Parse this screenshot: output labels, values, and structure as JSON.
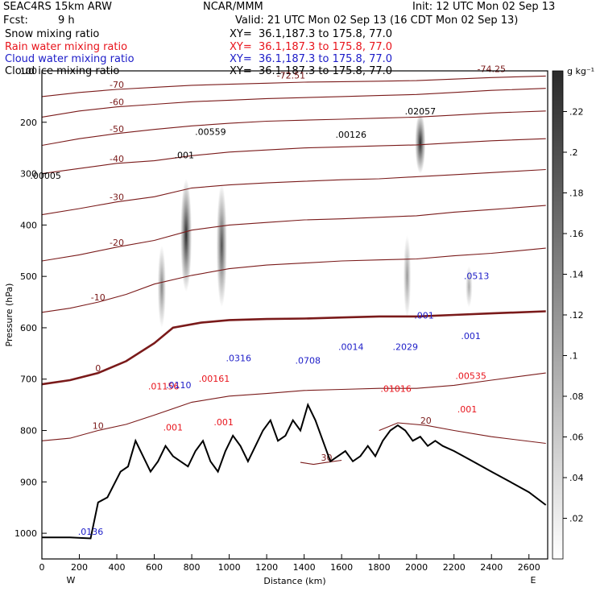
{
  "header": {
    "model": "SEAC4RS 15km ARW",
    "org": "NCAR/MMM",
    "init": "Init: 12 UTC Mon 02 Sep 13",
    "fcst_label": "Fcst:",
    "fcst_value": "9 h",
    "valid": "Valid: 21 UTC Mon 02 Sep 13 (16 CDT Mon 02 Sep 13)"
  },
  "fields": [
    {
      "label": "Snow mixing ratio",
      "xy": "XY=  36.1,187.3 to 175.8, 77.0",
      "color": "#000000"
    },
    {
      "label": "Rain water mixing ratio",
      "xy": "XY=  36.1,187.3 to 175.8, 77.0",
      "color": "#e8141c"
    },
    {
      "label": "Cloud water mixing ratio",
      "xy": "XY=  36.1,187.3 to 175.8, 77.0",
      "color": "#1c1cc8"
    },
    {
      "label": "Cloud ice mixing ratio",
      "xy": "XY=  36.1,187.3 to 175.8, 77.0",
      "color": "#000000"
    }
  ],
  "chart_data": {
    "type": "cross-section",
    "xlabel": "Distance (km)",
    "ylabel": "Pressure (hPa)",
    "xlim": [
      0,
      2700
    ],
    "ylim": [
      1050,
      100
    ],
    "x_ticks": [
      0,
      200,
      400,
      600,
      800,
      1000,
      1200,
      1400,
      1600,
      1800,
      2000,
      2200,
      2400,
      2600
    ],
    "y_ticks": [
      1000,
      900,
      800,
      700,
      600,
      500,
      400,
      300,
      200,
      100
    ],
    "x_end_labels": {
      "left": "W",
      "right": "E"
    },
    "colorbar": {
      "unit": "g kg⁻¹",
      "ticks": [
        ".02",
        ".04",
        ".06",
        ".08",
        ".1",
        ".12",
        ".14",
        ".16",
        ".18",
        ".2",
        ".22"
      ],
      "max": 0.24
    },
    "temperature_contours": [
      {
        "value": 30,
        "label": "30",
        "points": [
          [
            1380,
            862
          ],
          [
            1450,
            866
          ],
          [
            1520,
            862
          ],
          [
            1600,
            858
          ]
        ]
      },
      {
        "value": 20,
        "label": "20",
        "points": [
          [
            1800,
            800
          ],
          [
            1900,
            785
          ],
          [
            2050,
            790
          ],
          [
            2200,
            800
          ],
          [
            2400,
            812
          ],
          [
            2690,
            825
          ]
        ]
      },
      {
        "value": 10,
        "label": "10",
        "points": [
          [
            0,
            820
          ],
          [
            150,
            815
          ],
          [
            300,
            800
          ],
          [
            450,
            788
          ],
          [
            600,
            770
          ],
          [
            800,
            745
          ],
          [
            1000,
            733
          ],
          [
            1200,
            728
          ],
          [
            1400,
            722
          ],
          [
            1600,
            720
          ],
          [
            1800,
            718
          ],
          [
            2000,
            718
          ],
          [
            2200,
            712
          ],
          [
            2400,
            702
          ],
          [
            2690,
            688
          ]
        ]
      },
      {
        "value": 0,
        "label": "0",
        "points": [
          [
            0,
            710
          ],
          [
            150,
            702
          ],
          [
            300,
            688
          ],
          [
            450,
            665
          ],
          [
            600,
            630
          ],
          [
            700,
            600
          ],
          [
            850,
            590
          ],
          [
            1000,
            585
          ],
          [
            1200,
            583
          ],
          [
            1400,
            582
          ],
          [
            1600,
            580
          ],
          [
            1800,
            578
          ],
          [
            2000,
            578
          ],
          [
            2200,
            575
          ],
          [
            2400,
            572
          ],
          [
            2690,
            568
          ]
        ],
        "freezing": true
      },
      {
        "value": -10,
        "label": "-10",
        "points": [
          [
            0,
            570
          ],
          [
            150,
            562
          ],
          [
            300,
            550
          ],
          [
            450,
            535
          ],
          [
            600,
            515
          ],
          [
            800,
            498
          ],
          [
            1000,
            485
          ],
          [
            1200,
            478
          ],
          [
            1400,
            474
          ],
          [
            1600,
            470
          ],
          [
            1800,
            468
          ],
          [
            2000,
            466
          ],
          [
            2200,
            460
          ],
          [
            2400,
            455
          ],
          [
            2690,
            445
          ]
        ]
      },
      {
        "value": -20,
        "label": "-20",
        "points": [
          [
            0,
            470
          ],
          [
            200,
            458
          ],
          [
            400,
            443
          ],
          [
            600,
            430
          ],
          [
            800,
            410
          ],
          [
            1000,
            400
          ],
          [
            1200,
            395
          ],
          [
            1400,
            390
          ],
          [
            1600,
            388
          ],
          [
            1800,
            385
          ],
          [
            2000,
            382
          ],
          [
            2200,
            375
          ],
          [
            2400,
            370
          ],
          [
            2690,
            362
          ]
        ]
      },
      {
        "value": -30,
        "label": "-30",
        "points": [
          [
            0,
            380
          ],
          [
            200,
            368
          ],
          [
            400,
            355
          ],
          [
            600,
            345
          ],
          [
            800,
            328
          ],
          [
            1000,
            322
          ],
          [
            1200,
            318
          ],
          [
            1400,
            315
          ],
          [
            1600,
            312
          ],
          [
            1800,
            310
          ],
          [
            2000,
            306
          ],
          [
            2200,
            302
          ],
          [
            2400,
            298
          ],
          [
            2690,
            292
          ]
        ]
      },
      {
        "value": -40,
        "label": "-40",
        "points": [
          [
            0,
            300
          ],
          [
            200,
            290
          ],
          [
            400,
            280
          ],
          [
            600,
            275
          ],
          [
            800,
            265
          ],
          [
            1000,
            258
          ],
          [
            1200,
            254
          ],
          [
            1400,
            250
          ],
          [
            1600,
            248
          ],
          [
            1800,
            246
          ],
          [
            2000,
            244
          ],
          [
            2200,
            240
          ],
          [
            2400,
            236
          ],
          [
            2690,
            232
          ]
        ]
      },
      {
        "value": -50,
        "label": "-50",
        "points": [
          [
            0,
            245
          ],
          [
            200,
            232
          ],
          [
            400,
            222
          ],
          [
            600,
            214
          ],
          [
            800,
            207
          ],
          [
            1000,
            202
          ],
          [
            1200,
            198
          ],
          [
            1400,
            196
          ],
          [
            1600,
            194
          ],
          [
            1800,
            192
          ],
          [
            2000,
            190
          ],
          [
            2200,
            186
          ],
          [
            2400,
            182
          ],
          [
            2690,
            178
          ]
        ]
      },
      {
        "value": -60,
        "label": "-60",
        "points": [
          [
            0,
            190
          ],
          [
            200,
            178
          ],
          [
            400,
            170
          ],
          [
            600,
            165
          ],
          [
            800,
            160
          ],
          [
            1000,
            157
          ],
          [
            1200,
            154
          ],
          [
            1400,
            152
          ],
          [
            1600,
            150
          ],
          [
            1800,
            148
          ],
          [
            2000,
            146
          ],
          [
            2200,
            142
          ],
          [
            2400,
            138
          ],
          [
            2690,
            134
          ]
        ]
      },
      {
        "value": -70,
        "label": "-70",
        "points": [
          [
            0,
            150
          ],
          [
            200,
            142
          ],
          [
            400,
            136
          ],
          [
            600,
            132
          ],
          [
            800,
            128
          ],
          [
            1000,
            126
          ],
          [
            1200,
            124
          ],
          [
            1400,
            122
          ],
          [
            1600,
            121
          ],
          [
            1800,
            120
          ],
          [
            2000,
            119
          ],
          [
            2200,
            116
          ],
          [
            2400,
            113
          ],
          [
            2690,
            110
          ]
        ]
      }
    ],
    "terrain": [
      [
        0,
        1008
      ],
      [
        150,
        1008
      ],
      [
        260,
        1010
      ],
      [
        300,
        940
      ],
      [
        350,
        930
      ],
      [
        420,
        880
      ],
      [
        460,
        870
      ],
      [
        500,
        820
      ],
      [
        540,
        850
      ],
      [
        580,
        880
      ],
      [
        620,
        860
      ],
      [
        660,
        830
      ],
      [
        700,
        850
      ],
      [
        740,
        860
      ],
      [
        780,
        870
      ],
      [
        820,
        840
      ],
      [
        860,
        820
      ],
      [
        900,
        860
      ],
      [
        940,
        880
      ],
      [
        980,
        840
      ],
      [
        1020,
        810
      ],
      [
        1060,
        830
      ],
      [
        1100,
        860
      ],
      [
        1140,
        830
      ],
      [
        1180,
        800
      ],
      [
        1220,
        780
      ],
      [
        1260,
        820
      ],
      [
        1300,
        810
      ],
      [
        1340,
        780
      ],
      [
        1380,
        800
      ],
      [
        1420,
        750
      ],
      [
        1460,
        780
      ],
      [
        1500,
        820
      ],
      [
        1540,
        860
      ],
      [
        1580,
        850
      ],
      [
        1620,
        840
      ],
      [
        1660,
        860
      ],
      [
        1700,
        850
      ],
      [
        1740,
        830
      ],
      [
        1780,
        850
      ],
      [
        1820,
        820
      ],
      [
        1860,
        800
      ],
      [
        1900,
        790
      ],
      [
        1940,
        800
      ],
      [
        1980,
        820
      ],
      [
        2020,
        812
      ],
      [
        2060,
        830
      ],
      [
        2100,
        820
      ],
      [
        2140,
        830
      ],
      [
        2200,
        840
      ],
      [
        2300,
        860
      ],
      [
        2400,
        880
      ],
      [
        2500,
        900
      ],
      [
        2600,
        920
      ],
      [
        2690,
        945
      ]
    ],
    "snow_shading": [
      {
        "x": 770,
        "p": 420,
        "rx": 30,
        "ry": 110,
        "q": 0.2
      },
      {
        "x": 960,
        "p": 440,
        "rx": 28,
        "ry": 120,
        "q": 0.16
      },
      {
        "x": 640,
        "p": 520,
        "rx": 22,
        "ry": 80,
        "q": 0.1
      },
      {
        "x": 2020,
        "p": 240,
        "rx": 28,
        "ry": 60,
        "q": 0.22
      },
      {
        "x": 1950,
        "p": 500,
        "rx": 20,
        "ry": 80,
        "q": 0.08
      },
      {
        "x": 2280,
        "p": 520,
        "rx": 18,
        "ry": 40,
        "q": 0.06
      }
    ],
    "max_labels": [
      {
        "field": "snow",
        "text": ".00559",
        "x": 900,
        "p": 225
      },
      {
        "field": "snow",
        "text": ".00126",
        "x": 1650,
        "p": 230
      },
      {
        "field": "snow",
        "text": ".02057",
        "x": 2020,
        "p": 185
      },
      {
        "field": "snow",
        "text": ".00005",
        "x": 20,
        "p": 310
      },
      {
        "field": "snow",
        "text": ".001",
        "x": 760,
        "p": 270
      },
      {
        "field": "rain",
        "text": ".01156",
        "x": 650,
        "p": 720
      },
      {
        "field": "rain",
        "text": ".00161",
        "x": 920,
        "p": 705
      },
      {
        "field": "rain",
        "text": ".01016",
        "x": 1890,
        "p": 725
      },
      {
        "field": "rain",
        "text": ".00535",
        "x": 2290,
        "p": 700
      },
      {
        "field": "rain",
        "text": ".001",
        "x": 700,
        "p": 800
      },
      {
        "field": "rain",
        "text": ".001",
        "x": 970,
        "p": 790
      },
      {
        "field": "rain",
        "text": ".001",
        "x": 2270,
        "p": 765
      },
      {
        "field": "cloud",
        "text": ".0110",
        "x": 730,
        "p": 718
      },
      {
        "field": "cloud",
        "text": ".0316",
        "x": 1050,
        "p": 665
      },
      {
        "field": "cloud",
        "text": ".0708",
        "x": 1420,
        "p": 670
      },
      {
        "field": "cloud",
        "text": ".0014",
        "x": 1650,
        "p": 643
      },
      {
        "field": "cloud",
        "text": ".2029",
        "x": 1940,
        "p": 643
      },
      {
        "field": "cloud",
        "text": ".001",
        "x": 2040,
        "p": 582
      },
      {
        "field": "cloud",
        "text": ".001",
        "x": 2290,
        "p": 622
      },
      {
        "field": "cloud",
        "text": ".0513",
        "x": 2320,
        "p": 505
      },
      {
        "field": "cloud",
        "text": ".0136",
        "x": 260,
        "p": 1003
      },
      {
        "field": "ice",
        "text": "-72.51",
        "x": 1330,
        "p": 115
      },
      {
        "field": "ice",
        "text": "-74.25",
        "x": 2400,
        "p": 102
      }
    ]
  }
}
